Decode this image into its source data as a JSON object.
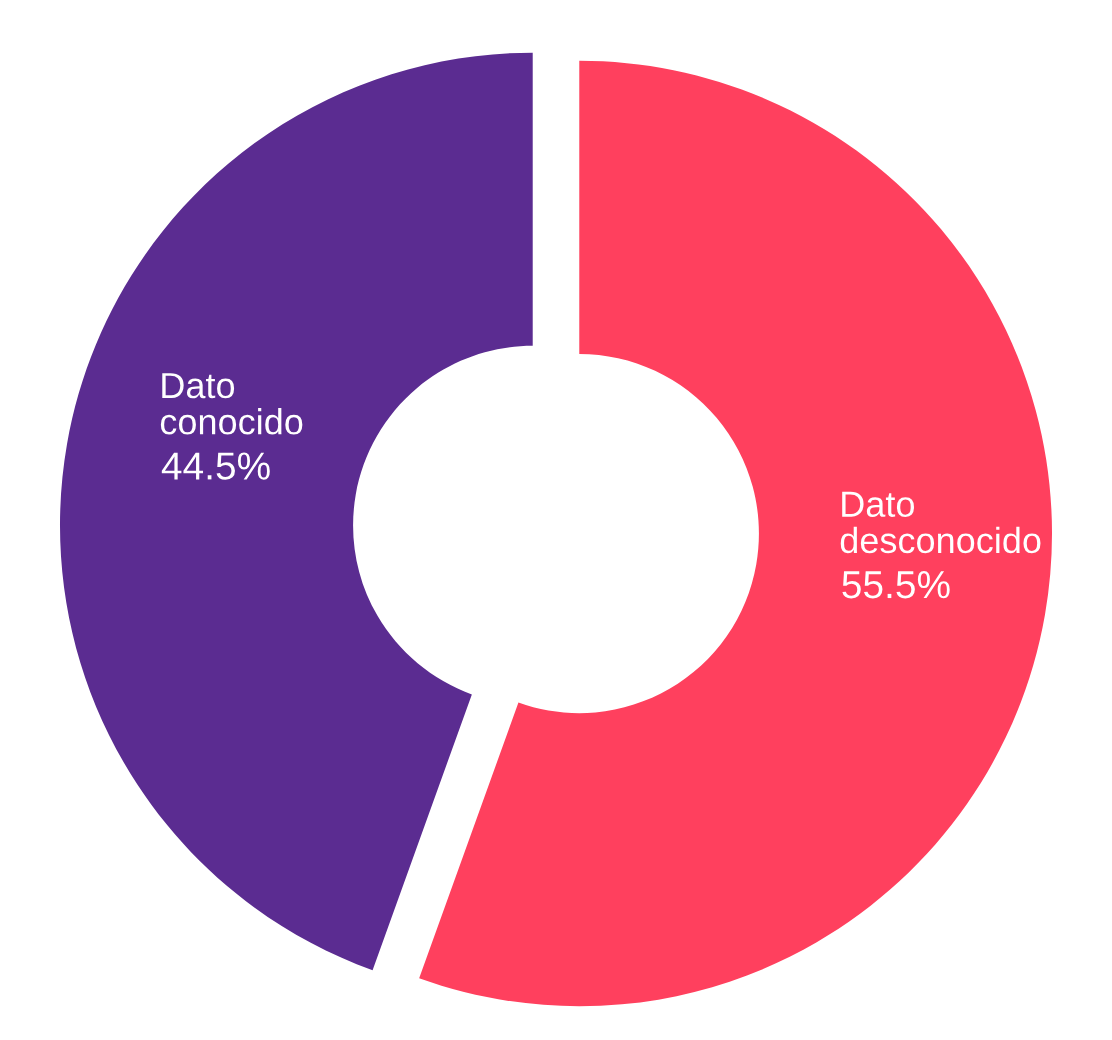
{
  "chart_data": {
    "type": "donut",
    "categories": [
      "Dato desconocido",
      "Dato conocido"
    ],
    "values": [
      55.5,
      44.5
    ],
    "colors": [
      "#ff405e",
      "#5b2c91"
    ],
    "value_labels": [
      "55.5%",
      "44.5%"
    ],
    "legend": false
  }
}
